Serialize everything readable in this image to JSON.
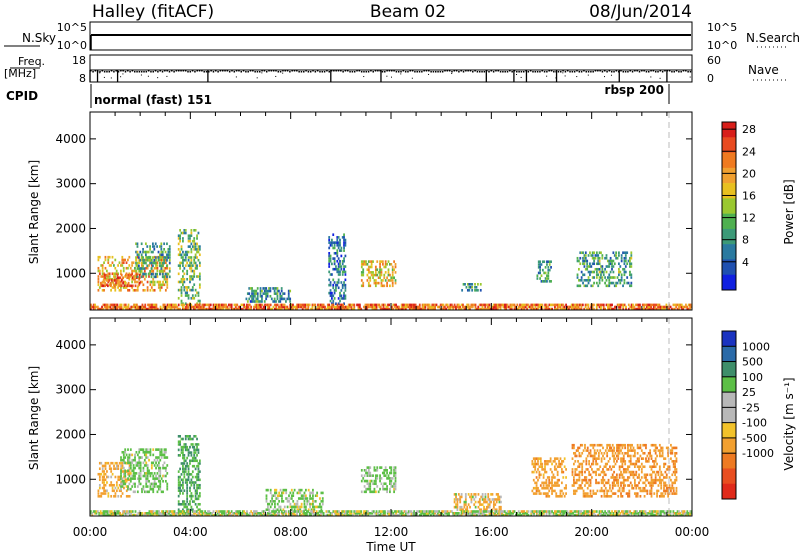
{
  "header": {
    "station": "Halley (fitACF)",
    "beam": "Beam 02",
    "date": "08/Jun/2014"
  },
  "param_panels": {
    "nsky_label": "N.Sky",
    "nsearch_label": "N.Search",
    "nsky_ticks": [
      "10^5",
      "10^0"
    ],
    "nsearch_ticks": [
      "10^5",
      "10^0"
    ],
    "freq_label": "Freq.",
    "freq_unit": "[MHz]",
    "freq_ticks": [
      "18",
      "8"
    ],
    "nave_label": "Nave",
    "nave_ticks": [
      "60",
      "0"
    ],
    "cpid_label": "CPID",
    "cpid_modes": [
      "normal (fast) 151",
      "rbsp 200"
    ]
  },
  "axes": {
    "xlabel": "Time UT",
    "x_ticks": [
      "00:00",
      "04:00",
      "08:00",
      "12:00",
      "16:00",
      "20:00",
      "00:00"
    ],
    "ylabel": "Slant Range [km]",
    "y_ticks": [
      "1000",
      "2000",
      "3000",
      "4000"
    ]
  },
  "power_colorbar": {
    "label": "Power [dB]",
    "ticks": [
      "4",
      "8",
      "12",
      "16",
      "20",
      "24",
      "28"
    ],
    "colors": [
      "#1020e0",
      "#1f50b0",
      "#2a7aa0",
      "#3c9a78",
      "#4fb050",
      "#9ac830",
      "#e8c020",
      "#f0a030",
      "#ef7a20",
      "#e84a20",
      "#d81e1a"
    ]
  },
  "velocity_colorbar": {
    "label": "Velocity [m s⁻¹]",
    "ticks": [
      "1000",
      "500",
      "100",
      "25",
      "-25",
      "-100",
      "-500",
      "-1000"
    ],
    "colors": [
      "#1a33c0",
      "#2a6aa8",
      "#3e8e6a",
      "#5cbf46",
      "#b8b8b8",
      "#b8b8b8",
      "#f2c22a",
      "#f2a030",
      "#ee7a22",
      "#e84e20",
      "#e02a1a"
    ]
  },
  "chart_data": [
    {
      "type": "line",
      "panel": "N.Sky / N.Search",
      "title": "",
      "xlabel": "",
      "ylabel": "N.Sky",
      "y_scale": "log",
      "ylim": [
        "10^0",
        "10^5"
      ],
      "xlim_hours": [
        0,
        24
      ],
      "series": [
        {
          "name": "N.Sky",
          "x_hours": [
            0,
            24
          ],
          "values": [
            "~10^4",
            "~10^4"
          ]
        }
      ]
    },
    {
      "type": "scatter",
      "panel": "Freq / Nave",
      "ylabel": "Freq. [MHz]",
      "ylim_freq_mhz": [
        8,
        18
      ],
      "ylim_nave": [
        0,
        60
      ],
      "series": [
        {
          "name": "Freq.",
          "x_hours": [
            0,
            0.3,
            1.1,
            4.7,
            9.6,
            11.6,
            15.8,
            16.9,
            17.4,
            18.6,
            21.1,
            23.0
          ],
          "values": [
            12,
            9,
            9,
            9,
            9,
            9,
            9,
            9,
            9,
            9,
            9,
            12
          ]
        }
      ]
    },
    {
      "type": "heatmap",
      "panel": "Power",
      "xlabel": "Time UT",
      "ylabel": "Slant Range [km]",
      "xlim_hours": [
        0,
        24
      ],
      "ylim_km": [
        180,
        4600
      ],
      "colorbar": "Power [dB]",
      "clim": [
        0,
        30
      ],
      "regions": [
        {
          "t0": 0.3,
          "t1": 3.1,
          "r0": 600,
          "r1": 1400,
          "value": 20
        },
        {
          "t0": 0.4,
          "t1": 2.0,
          "r0": 700,
          "r1": 1000,
          "value": 26
        },
        {
          "t0": 1.8,
          "t1": 3.2,
          "r0": 900,
          "r1": 1700,
          "value": 10
        },
        {
          "t0": 3.5,
          "t1": 4.4,
          "r0": 300,
          "r1": 2000,
          "value": 12
        },
        {
          "t0": 6.2,
          "t1": 8.0,
          "r0": 350,
          "r1": 700,
          "value": 8
        },
        {
          "t0": 9.5,
          "t1": 10.2,
          "r0": 300,
          "r1": 1900,
          "value": 6
        },
        {
          "t0": 10.8,
          "t1": 12.2,
          "r0": 700,
          "r1": 1300,
          "value": 18
        },
        {
          "t0": 14.8,
          "t1": 15.6,
          "r0": 600,
          "r1": 800,
          "value": 8
        },
        {
          "t0": 17.8,
          "t1": 18.4,
          "r0": 800,
          "r1": 1300,
          "value": 10
        },
        {
          "t0": 19.4,
          "t1": 21.6,
          "r0": 700,
          "r1": 1500,
          "value": 10
        },
        {
          "t0": 0.0,
          "t1": 24.0,
          "r0": 180,
          "r1": 320,
          "value": 24
        }
      ]
    },
    {
      "type": "heatmap",
      "panel": "Velocity",
      "xlabel": "Time UT",
      "ylabel": "Slant Range [km]",
      "xlim_hours": [
        0,
        24
      ],
      "ylim_km": [
        180,
        4600
      ],
      "colorbar": "Velocity [m s⁻¹]",
      "clim": [
        -1000,
        1000
      ],
      "regions": [
        {
          "t0": 0.3,
          "t1": 1.6,
          "r0": 600,
          "r1": 1400,
          "value": -200
        },
        {
          "t0": 1.2,
          "t1": 3.1,
          "r0": 700,
          "r1": 1700,
          "value": 200
        },
        {
          "t0": 3.5,
          "t1": 4.4,
          "r0": 300,
          "r1": 2000,
          "value": 500
        },
        {
          "t0": 7.0,
          "t1": 9.3,
          "r0": 300,
          "r1": 800,
          "value": 150
        },
        {
          "t0": 10.8,
          "t1": 12.2,
          "r0": 700,
          "r1": 1300,
          "value": 200
        },
        {
          "t0": 14.5,
          "t1": 16.4,
          "r0": 300,
          "r1": 700,
          "value": -100
        },
        {
          "t0": 17.6,
          "t1": 19.0,
          "r0": 600,
          "r1": 1500,
          "value": -300
        },
        {
          "t0": 19.2,
          "t1": 23.4,
          "r0": 600,
          "r1": 1800,
          "value": -400
        },
        {
          "t0": 0.0,
          "t1": 24.0,
          "r0": 180,
          "r1": 300,
          "value": 100
        }
      ]
    }
  ]
}
